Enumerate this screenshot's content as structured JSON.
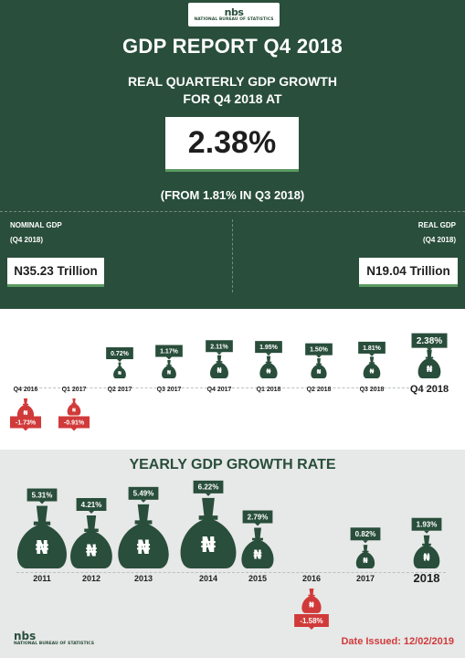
{
  "header": {
    "logo_mark": "nbs",
    "logo_text": "NATIONAL BUREAU OF STATISTICS",
    "title": "GDP REPORT Q4 2018",
    "subtitle_line1": "REAL QUARTERLY GDP GROWTH",
    "subtitle_line2": "FOR Q4 2018 AT",
    "headline_value": "2.38%",
    "from_text": "(FROM 1.81% IN Q3 2018)"
  },
  "nominal": {
    "label": "NOMINAL GDP",
    "period": "(Q4 2018)",
    "value": "N35.23 Trillion"
  },
  "real": {
    "label": "REAL GDP",
    "period": "(Q4 2018)",
    "value": "N19.04 Trillion"
  },
  "footer": {
    "logo_mark": "nbs",
    "logo_text": "NATIONAL BUREAU OF STATISTICS",
    "date_issued": "Date Issued: 12/02/2019"
  },
  "colors": {
    "dark_green": "#294e3b",
    "accent_green": "#5b9a63",
    "negative_red": "#d13a3a",
    "grey_bg": "#e7e8e8"
  },
  "chart_data": [
    {
      "type": "bar",
      "title": "",
      "categories": [
        "Q4 2016",
        "Q1 2017",
        "Q2 2017",
        "Q3 2017",
        "Q4 2017",
        "Q1 2018",
        "Q2 2018",
        "Q3 2018",
        "Q4 2018"
      ],
      "values": [
        -1.73,
        -0.91,
        0.72,
        1.17,
        2.11,
        1.95,
        1.5,
        1.81,
        2.38
      ],
      "labels": [
        "-1.73%",
        "-0.91%",
        "0.72%",
        "1.17%",
        "2.11%",
        "1.95%",
        "1.50%",
        "1.81%",
        "2.38%"
      ]
    },
    {
      "type": "bar",
      "title": "YEARLY GDP GROWTH RATE",
      "categories": [
        "2011",
        "2012",
        "2013",
        "2014",
        "2015",
        "2016",
        "2017",
        "2018"
      ],
      "values": [
        5.31,
        4.21,
        5.49,
        6.22,
        2.79,
        -1.58,
        0.82,
        1.93
      ],
      "labels": [
        "5.31%",
        "4.21%",
        "5.49%",
        "6.22%",
        "2.79%",
        "-1.58%",
        "0.82%",
        "1.93%"
      ]
    }
  ]
}
